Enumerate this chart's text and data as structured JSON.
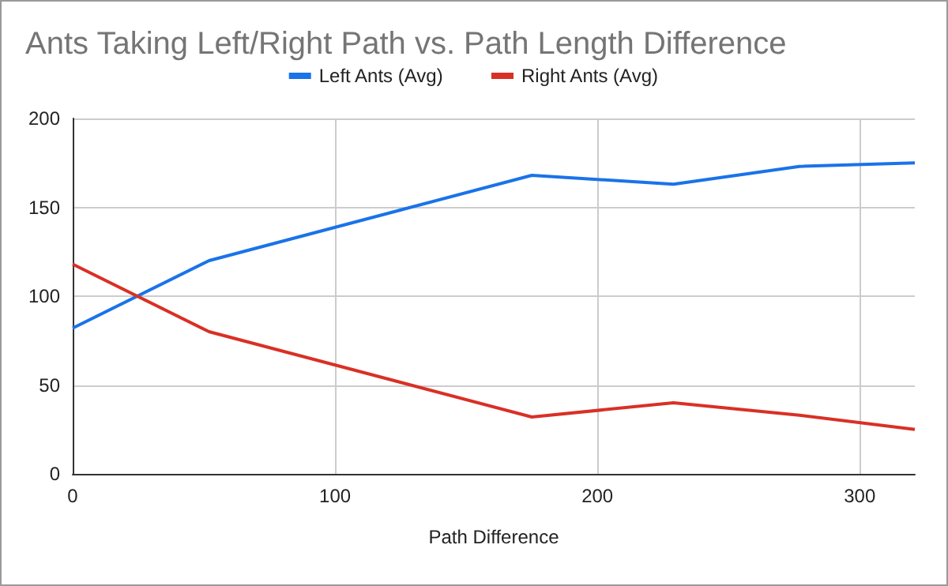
{
  "chart_data": {
    "type": "line",
    "title": "Ants Taking Left/Right Path vs. Path Length Difference",
    "xlabel": "Path Difference",
    "x": [
      0,
      52,
      175,
      229,
      277,
      321
    ],
    "series": [
      {
        "name": "Left Ants (Avg)",
        "color": "#1a73e8",
        "values": [
          82,
          120,
          168,
          163,
          173,
          175
        ]
      },
      {
        "name": "Right Ants (Avg)",
        "color": "#d93025",
        "values": [
          118,
          80,
          32,
          40,
          33,
          25
        ]
      }
    ],
    "xlim": [
      0,
      321
    ],
    "xticks": [
      0,
      100,
      200,
      300
    ],
    "ylim": [
      0,
      200
    ],
    "yticks": [
      0,
      50,
      100,
      150,
      200
    ],
    "grid": true,
    "legend": "top",
    "marker": "none",
    "line_style": "solid"
  }
}
